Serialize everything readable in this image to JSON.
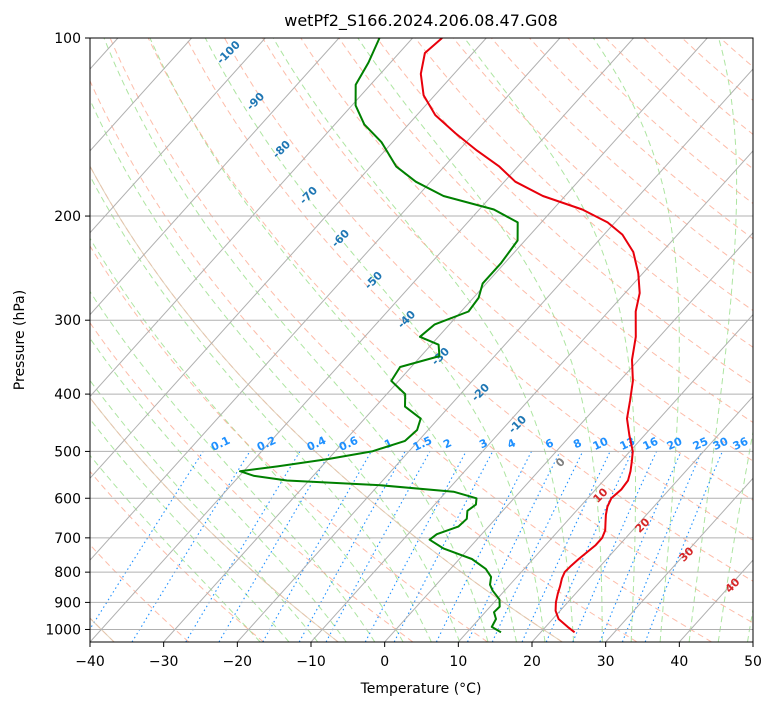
{
  "chart_data": {
    "type": "line",
    "title": "wetPf2_S166.2024.206.08.47.G08",
    "xlabel": "Temperature (°C)",
    "ylabel": "Pressure (hPa)",
    "xlim": [
      -40,
      50
    ],
    "ylim": [
      1050,
      100
    ],
    "y_scale": "log",
    "skew": true,
    "grid": true,
    "x_ticks": [
      -40,
      -30,
      -20,
      -10,
      0,
      10,
      20,
      30,
      40,
      50
    ],
    "x_tick_labels": [
      "−40",
      "−30",
      "−20",
      "−10",
      "0",
      "10",
      "20",
      "30",
      "40",
      "50"
    ],
    "y_ticks": [
      100,
      200,
      300,
      400,
      500,
      600,
      700,
      800,
      900,
      1000
    ],
    "y_tick_labels": [
      "100",
      "200",
      "300",
      "400",
      "500",
      "600",
      "700",
      "800",
      "900",
      "1000"
    ],
    "series": [
      {
        "color": "#e8000b",
        "points": [
          [
            1011,
            24.6
          ],
          [
            990,
            23.0
          ],
          [
            960,
            20.8
          ],
          [
            930,
            19.4
          ],
          [
            900,
            18.4
          ],
          [
            870,
            17.6
          ],
          [
            845,
            17.0
          ],
          [
            820,
            16.3
          ],
          [
            800,
            15.9
          ],
          [
            780,
            16.0
          ],
          [
            760,
            16.2
          ],
          [
            740,
            16.5
          ],
          [
            720,
            16.8
          ],
          [
            700,
            16.8
          ],
          [
            680,
            16.3
          ],
          [
            660,
            15.4
          ],
          [
            640,
            14.5
          ],
          [
            620,
            13.7
          ],
          [
            600,
            13.2
          ],
          [
            580,
            13.5
          ],
          [
            560,
            13.3
          ],
          [
            540,
            12.5
          ],
          [
            520,
            11.5
          ],
          [
            500,
            10.4
          ],
          [
            470,
            8.0
          ],
          [
            440,
            5.6
          ],
          [
            410,
            3.8
          ],
          [
            380,
            1.8
          ],
          [
            350,
            -0.9
          ],
          [
            320,
            -3.2
          ],
          [
            290,
            -6.3
          ],
          [
            270,
            -8.0
          ],
          [
            250,
            -10.6
          ],
          [
            230,
            -13.9
          ],
          [
            215,
            -17.5
          ],
          [
            205,
            -21.0
          ],
          [
            195,
            -26.0
          ],
          [
            185,
            -33.0
          ],
          [
            175,
            -38.5
          ],
          [
            165,
            -42.5
          ],
          [
            155,
            -47.5
          ],
          [
            145,
            -52.5
          ],
          [
            135,
            -57.5
          ],
          [
            125,
            -61.5
          ],
          [
            115,
            -64.5
          ],
          [
            106,
            -66.5
          ],
          [
            100,
            -66.0
          ]
        ]
      },
      {
        "color": "#008000",
        "points": [
          [
            1011,
            14.6
          ],
          [
            990,
            12.7
          ],
          [
            960,
            12.3
          ],
          [
            935,
            11.2
          ],
          [
            915,
            11.3
          ],
          [
            890,
            10.4
          ],
          [
            860,
            8.4
          ],
          [
            840,
            7.3
          ],
          [
            815,
            6.5
          ],
          [
            790,
            4.8
          ],
          [
            760,
            1.7
          ],
          [
            730,
            -3.4
          ],
          [
            705,
            -6.4
          ],
          [
            690,
            -6.1
          ],
          [
            670,
            -4.1
          ],
          [
            650,
            -3.9
          ],
          [
            630,
            -4.8
          ],
          [
            615,
            -4.4
          ],
          [
            600,
            -5.1
          ],
          [
            585,
            -9.0
          ],
          [
            570,
            -20.0
          ],
          [
            560,
            -33.0
          ],
          [
            550,
            -38.0
          ],
          [
            540,
            -40.5
          ],
          [
            530,
            -36.0
          ],
          [
            515,
            -30.0
          ],
          [
            500,
            -25.0
          ],
          [
            480,
            -21.8
          ],
          [
            460,
            -21.5
          ],
          [
            440,
            -22.4
          ],
          [
            420,
            -26.0
          ],
          [
            400,
            -27.5
          ],
          [
            380,
            -31.0
          ],
          [
            360,
            -31.5
          ],
          [
            345,
            -27.5
          ],
          [
            330,
            -29.0
          ],
          [
            320,
            -32.5
          ],
          [
            305,
            -32.0
          ],
          [
            290,
            -29.0
          ],
          [
            275,
            -29.3
          ],
          [
            260,
            -30.5
          ],
          [
            240,
            -30.5
          ],
          [
            220,
            -31.0
          ],
          [
            205,
            -33.2
          ],
          [
            195,
            -38.0
          ],
          [
            185,
            -46.5
          ],
          [
            175,
            -52.0
          ],
          [
            165,
            -56.5
          ],
          [
            150,
            -61.5
          ],
          [
            140,
            -66.0
          ],
          [
            130,
            -69.5
          ],
          [
            120,
            -72.0
          ],
          [
            110,
            -73.0
          ],
          [
            100,
            -74.5
          ]
        ]
      }
    ],
    "dry_adiabat_labels": [
      "-100",
      "-90",
      "-80",
      "-70",
      "-60",
      "-50",
      "-40",
      "-30",
      "-20",
      "-10"
    ],
    "dry_adiabat_label_color": "#1f77b4",
    "moist_adiabat_labels": [
      "0",
      "10",
      "20",
      "30",
      "40"
    ],
    "moist_adiabat_label_colors": [
      "#7f7f7f",
      "#d62728",
      "#d62728",
      "#d62728",
      "#d62728"
    ],
    "mixing_ratio_labels": [
      "0.1",
      "0.2",
      "0.4",
      "0.6",
      "1",
      "1.5",
      "2",
      "3",
      "4",
      "6",
      "8",
      "10",
      "13",
      "16",
      "20",
      "25",
      "30",
      "36"
    ],
    "mixing_ratio_label_color": "#1e90ff"
  }
}
